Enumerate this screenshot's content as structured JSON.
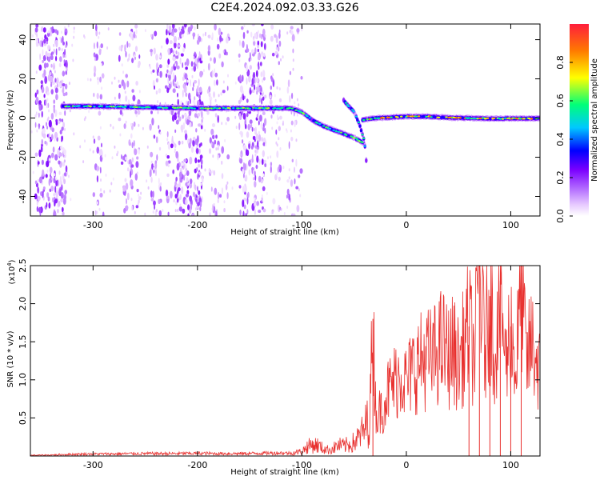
{
  "title": "C2E4.2024.092.03.33.G26",
  "chart_data": [
    {
      "type": "heatmap",
      "xlabel": "Height of straight line (km)",
      "ylabel": "Frequency (Hz)",
      "xlim": [
        -360,
        128
      ],
      "ylim": [
        -50,
        48
      ],
      "x_ticks": [
        -300,
        -200,
        -100,
        0,
        100
      ],
      "y_ticks": [
        -40,
        -20,
        0,
        20,
        40
      ],
      "colorbar": {
        "label": "Normalized spectral amplitude",
        "range": [
          0.0,
          1.0
        ],
        "ticks": [
          "0.0",
          "0.2",
          "0.4",
          "0.6",
          "0.8"
        ],
        "colors": [
          "#ffffff",
          "#e6c8ff",
          "#b46eff",
          "#7b00ff",
          "#0000ff",
          "#00c8ff",
          "#00ff78",
          "#ffff00",
          "#ff7a00",
          "#ff1e3c"
        ]
      },
      "tracks": [
        {
          "x": [
            -330,
            -300,
            -250,
            -200,
            -150,
            -110,
            -100,
            -90,
            -80,
            -70,
            -60,
            -50,
            -40
          ],
          "y": [
            6,
            6,
            5.5,
            5,
            5,
            5,
            3,
            -1,
            -4,
            -6,
            -8,
            -10,
            -13
          ]
        },
        {
          "x": [
            -60,
            -50,
            -45,
            -40,
            -38
          ],
          "y": [
            9,
            3,
            -3,
            -12,
            -24
          ]
        },
        {
          "x": [
            -42,
            -30,
            -10,
            0,
            20,
            40,
            60,
            80,
            100,
            128
          ],
          "y": [
            -1,
            0,
            0.5,
            0.8,
            0.8,
            0.2,
            0,
            -0.3,
            -0.2,
            -0.2
          ]
        }
      ]
    },
    {
      "type": "line",
      "xlabel": "Height of straight line (km)",
      "ylabel": "SNR (10 * v/v)",
      "y_multiplier": "(x10",
      "y_multiplier_exp": "4",
      "y_multiplier_close": ")",
      "xlim": [
        -360,
        128
      ],
      "ylim": [
        0,
        25000
      ],
      "x_ticks": [
        -300,
        -200,
        -100,
        0,
        100
      ],
      "y_tick_labels": [
        "0.5",
        "1.0",
        "1.5",
        "2.0",
        "2.5"
      ],
      "y_tick_values": [
        5000,
        10000,
        15000,
        20000,
        25000
      ],
      "series": [
        {
          "color": "#e8302e",
          "x": [
            -360,
            -340,
            -320,
            -300,
            -280,
            -260,
            -240,
            -220,
            -200,
            -180,
            -160,
            -140,
            -120,
            -110,
            -100,
            -95,
            -90,
            -85,
            -80,
            -75,
            -70,
            -65,
            -60,
            -55,
            -50,
            -45,
            -40,
            -35,
            -32,
            -30,
            -28,
            -25,
            -22,
            -20,
            -15,
            -10,
            -5,
            0,
            5,
            10,
            15,
            20,
            25,
            30,
            35,
            40,
            45,
            50,
            55,
            60,
            65,
            70,
            75,
            80,
            85,
            90,
            95,
            100,
            105,
            110,
            115,
            120,
            128
          ],
          "y": [
            100,
            150,
            250,
            300,
            300,
            350,
            350,
            350,
            400,
            350,
            350,
            400,
            450,
            400,
            600,
            1200,
            1500,
            1400,
            1000,
            800,
            1000,
            1400,
            1300,
            1500,
            1800,
            2500,
            3500,
            5500,
            18000,
            8000,
            5000,
            6000,
            6500,
            8000,
            9000,
            10000,
            11000,
            9500,
            11000,
            12000,
            12500,
            13000,
            12500,
            14000,
            14500,
            13000,
            14000,
            12000,
            14500,
            17000,
            13000,
            25000,
            14000,
            21000,
            13000,
            23000,
            12000,
            17000,
            11000,
            24000,
            12000,
            15000,
            11000
          ]
        }
      ]
    }
  ]
}
